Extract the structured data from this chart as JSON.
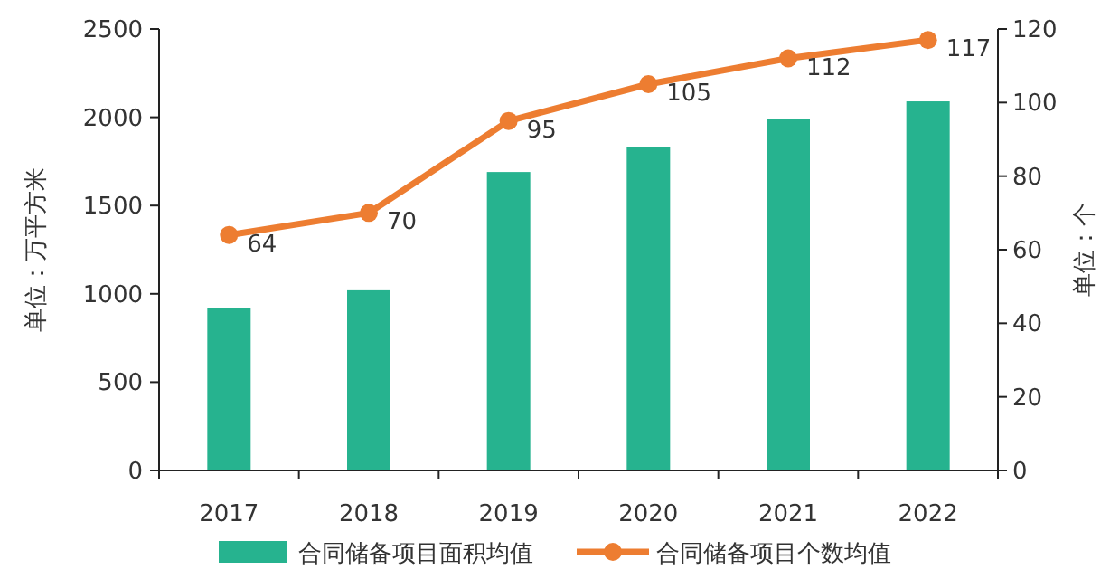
{
  "chart_data": {
    "type": "bar",
    "categories": [
      "2017",
      "2018",
      "2019",
      "2020",
      "2021",
      "2022"
    ],
    "ylabel": "单位：万平方米",
    "y2label": "单位：个",
    "ylim": [
      0,
      2500
    ],
    "yticks": [
      0,
      500,
      1000,
      1500,
      2000,
      2500
    ],
    "y2lim": [
      0,
      120
    ],
    "y2ticks": [
      0,
      20,
      40,
      60,
      80,
      100,
      120
    ],
    "legend": "bottom",
    "grid": false,
    "series": [
      {
        "name": "合同储备项目面积均值",
        "color": "#26b38f",
        "values": [
          920,
          1020,
          1690,
          1830,
          1990,
          2090
        ]
      },
      {
        "name": "合同储备项目个数均值",
        "type": "line",
        "axis": "y2",
        "color": "#ed7d31",
        "marker": "circle",
        "line_style": "solid",
        "values": [
          64,
          70,
          95,
          105,
          112,
          117
        ],
        "value_labels": [
          "64",
          "70",
          "95",
          "105",
          "112",
          "117"
        ]
      }
    ]
  }
}
